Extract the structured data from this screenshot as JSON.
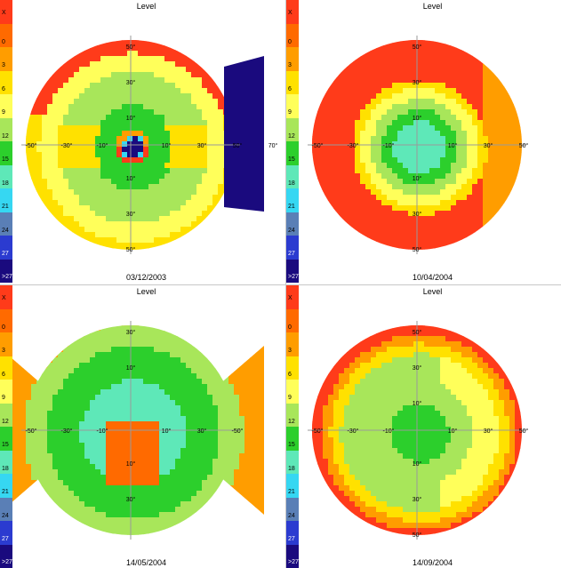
{
  "legend": {
    "unit": "X",
    "labels": [
      "0",
      "3",
      "6",
      "9",
      "12",
      "15",
      "18",
      "21",
      "24",
      "27",
      ">27"
    ],
    "colors": [
      "#ff3b1a",
      "#ff6a00",
      "#ff9d00",
      "#ffe100",
      "#ffff5a",
      "#a8e65a",
      "#2ccf2c",
      "#5ee8b8",
      "#36d7f2",
      "#5a7fb6",
      "#2b3bd0",
      "#1a0a7e"
    ]
  },
  "panels": [
    {
      "title": "Level",
      "date": "03/12/2003",
      "field": "cross",
      "ticks": {
        "top": [
          "50°",
          "30°",
          "10°"
        ],
        "bottom": [
          "10°",
          "30°",
          "50°"
        ],
        "left": [
          "-50°",
          "-30°",
          "-10°"
        ],
        "right": [
          "10°",
          "30°",
          "50°",
          "70°"
        ]
      }
    },
    {
      "title": "Level",
      "date": "10/04/2004",
      "field": "low-center",
      "ticks": {
        "top": [
          "50°",
          "30°",
          "10°"
        ],
        "bottom": [
          "10°",
          "30°",
          "50°"
        ],
        "left": [
          "-50°",
          "-30°",
          "-10°"
        ],
        "right": [
          "10°",
          "30°",
          "50°"
        ]
      }
    },
    {
      "title": "Level",
      "date": "14/05/2004",
      "field": "sectors",
      "ticks": {
        "top": [
          "30°",
          "10°"
        ],
        "bottom": [
          "10°",
          "30°"
        ],
        "left": [
          "-50°",
          "-30°",
          "-10°"
        ],
        "right": [
          "10°",
          "30°",
          "-50°"
        ]
      }
    },
    {
      "title": "Level",
      "date": "14/09/2004",
      "field": "wide",
      "ticks": {
        "top": [
          "50°",
          "30°",
          "10°"
        ],
        "bottom": [
          "10°",
          "30°",
          "50°"
        ],
        "left": [
          "-50°",
          "-30°",
          "-10°"
        ],
        "right": [
          "10°",
          "30°",
          "50°"
        ]
      }
    }
  ],
  "chart_data": {
    "type": "heatmap",
    "colorbar_levels": [
      "0",
      "3",
      "6",
      "9",
      "12",
      "15",
      "18",
      "21",
      "24",
      "27",
      ">27"
    ],
    "colorbar_unit": "X",
    "panels": [
      "03/12/2003",
      "10/04/2004",
      "14/05/2004",
      "14/09/2004"
    ]
  }
}
